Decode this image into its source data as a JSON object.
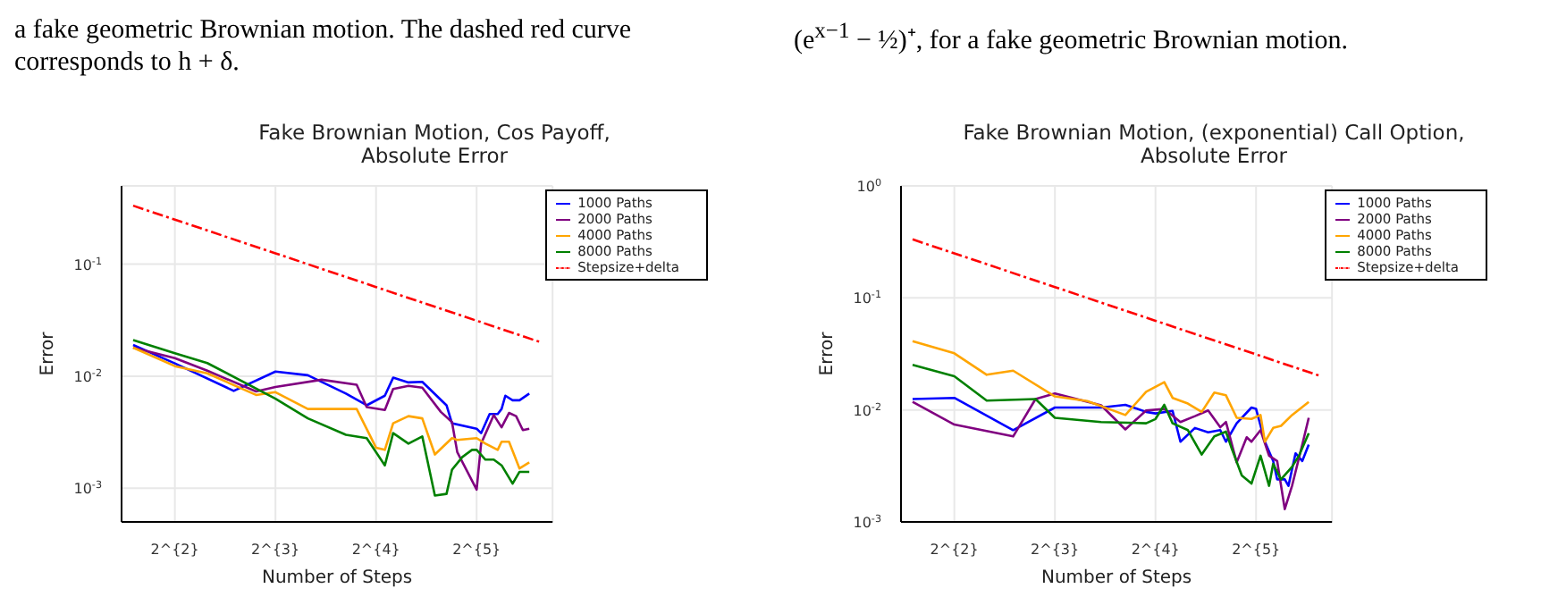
{
  "chart_data": [
    {
      "type": "line",
      "title": "Fake Brownian Motion, Cos Payoff,\nAbsolute Error",
      "xlabel": "Number of Steps",
      "ylabel": "Error",
      "log": "xy",
      "grid": true,
      "legend": "top right",
      "marker": "none",
      "annotations": [
        "a fake geometric Brownian motion. The dashed red curve corresponds to h + δ."
      ],
      "xlim": [
        2.77,
        54
      ],
      "xticks": [
        {
          "value": 4,
          "label": "2^{2}"
        },
        {
          "value": 8,
          "label": "2^{3}"
        },
        {
          "value": 16,
          "label": "2^{4}"
        },
        {
          "value": 32,
          "label": "2^{5}"
        }
      ],
      "ylim": [
        0.0005,
        0.5
      ],
      "yticks": [
        {
          "value": 0.001,
          "label": "10$^{-3}$"
        },
        {
          "value": 0.01,
          "label": "10$^{-2}$"
        },
        {
          "value": 0.1,
          "label": "10$^{-1}$"
        }
      ],
      "series": [
        {
          "name": "1000 Paths",
          "color": "#0000ff",
          "line_style": "solid",
          "x": [
            3,
            4,
            6,
            8,
            10,
            13,
            15,
            17,
            18,
            20,
            22,
            26,
            27,
            32,
            33,
            35,
            37,
            38,
            39,
            41,
            43,
            46
          ],
          "values": [
            0.019,
            0.013,
            0.0074,
            0.011,
            0.0102,
            0.007,
            0.0055,
            0.0067,
            0.0097,
            0.0088,
            0.0089,
            0.0055,
            0.0038,
            0.0034,
            0.0031,
            0.0046,
            0.0046,
            0.0051,
            0.0067,
            0.0061,
            0.0061,
            0.007
          ]
        },
        {
          "name": "2000 Paths",
          "color": "#800080",
          "line_style": "solid",
          "x": [
            3,
            4,
            5,
            7,
            8,
            11,
            14,
            15,
            17,
            18,
            20,
            22,
            25,
            27,
            28,
            32,
            33,
            36,
            38,
            40,
            42,
            44,
            46
          ],
          "values": [
            0.018,
            0.0145,
            0.0112,
            0.0073,
            0.008,
            0.0093,
            0.0084,
            0.0053,
            0.005,
            0.0077,
            0.0082,
            0.0079,
            0.0048,
            0.0039,
            0.0021,
            0.00097,
            0.0025,
            0.0045,
            0.0035,
            0.0047,
            0.0044,
            0.0033,
            0.0034
          ]
        },
        {
          "name": "4000 Paths",
          "color": "#ffa500",
          "line_style": "solid",
          "x": [
            3,
            4,
            5,
            7,
            8,
            10,
            14,
            16,
            17,
            18,
            20,
            22,
            24,
            27,
            28,
            32,
            34,
            37,
            38,
            40,
            43,
            46
          ],
          "values": [
            0.018,
            0.0123,
            0.0106,
            0.0068,
            0.0072,
            0.0051,
            0.0051,
            0.0023,
            0.0022,
            0.0038,
            0.0044,
            0.0042,
            0.002,
            0.0028,
            0.0027,
            0.0028,
            0.0025,
            0.0022,
            0.0026,
            0.0026,
            0.0015,
            0.0017
          ]
        },
        {
          "name": "8000 Paths",
          "color": "#008000",
          "line_style": "solid",
          "x": [
            3,
            4,
            5,
            8,
            10,
            13,
            15,
            17,
            18,
            20,
            22,
            24,
            26,
            27,
            29,
            31,
            32,
            34,
            36,
            38,
            41,
            43,
            46
          ],
          "values": [
            0.021,
            0.016,
            0.0131,
            0.0063,
            0.0042,
            0.003,
            0.0028,
            0.0016,
            0.0031,
            0.0025,
            0.0029,
            0.00086,
            0.00089,
            0.00146,
            0.0019,
            0.0022,
            0.0022,
            0.0018,
            0.0018,
            0.0016,
            0.0011,
            0.0014,
            0.0014
          ]
        },
        {
          "name": "Stepsize+delta",
          "color": "#ff0000",
          "line_style": "dashed",
          "x": [
            3,
            4,
            8,
            16,
            32,
            50
          ],
          "values": [
            0.333,
            0.25,
            0.125,
            0.0625,
            0.0313,
            0.02
          ]
        }
      ]
    },
    {
      "type": "line",
      "title": "Fake Brownian Motion, (exponential) Call Option,\nAbsolute Error",
      "xlabel": "Number of Steps",
      "ylabel": "Error",
      "log": "xy",
      "grid": true,
      "legend": "top right",
      "marker": "none",
      "annotations": [
        "(e$^{x−1}$ − ½)⁺, for a fake geometric Brownian motion."
      ],
      "xlim": [
        2.77,
        54
      ],
      "xticks": [
        {
          "value": 4,
          "label": "2^{2}"
        },
        {
          "value": 8,
          "label": "2^{3}"
        },
        {
          "value": 16,
          "label": "2^{4}"
        },
        {
          "value": 32,
          "label": "2^{5}"
        }
      ],
      "ylim": [
        0.001,
        1
      ],
      "yticks": [
        {
          "value": 0.001,
          "label": "10$^{-3}$"
        },
        {
          "value": 0.01,
          "label": "10$^{-2}$"
        },
        {
          "value": 0.1,
          "label": "10$^{-1}$"
        },
        {
          "value": 1,
          "label": "10$^{0}$"
        }
      ],
      "series": [
        {
          "name": "1000 Paths",
          "color": "#0000ff",
          "line_style": "solid",
          "x": [
            3,
            4,
            6,
            8,
            11,
            13,
            15,
            16,
            18,
            19,
            21,
            23,
            25,
            26,
            28,
            31,
            32,
            34,
            36,
            37,
            39,
            40,
            42,
            44,
            46
          ],
          "values": [
            0.0125,
            0.0128,
            0.0066,
            0.0105,
            0.0105,
            0.0111,
            0.0096,
            0.0093,
            0.0098,
            0.0052,
            0.0069,
            0.0063,
            0.0066,
            0.0052,
            0.0076,
            0.0105,
            0.0102,
            0.0052,
            0.0035,
            0.0024,
            0.0024,
            0.0021,
            0.0041,
            0.0035,
            0.0049
          ]
        },
        {
          "name": "2000 Paths",
          "color": "#800080",
          "line_style": "solid",
          "x": [
            3,
            4,
            6,
            7,
            8,
            11,
            13,
            15,
            17,
            19,
            21,
            23,
            25,
            26,
            28,
            30,
            31,
            33,
            35,
            37,
            39,
            41,
            44,
            46
          ],
          "values": [
            0.0118,
            0.0074,
            0.0058,
            0.0125,
            0.014,
            0.011,
            0.0067,
            0.0099,
            0.0102,
            0.0078,
            0.0088,
            0.0099,
            0.007,
            0.0078,
            0.0034,
            0.0057,
            0.0052,
            0.0066,
            0.0039,
            0.0035,
            0.0013,
            0.0021,
            0.0049,
            0.0085
          ]
        },
        {
          "name": "4000 Paths",
          "color": "#ffa500",
          "line_style": "solid",
          "x": [
            3,
            4,
            5,
            6,
            8,
            10,
            13,
            15,
            17,
            18,
            20,
            22,
            24,
            26,
            28,
            31,
            33,
            34,
            36,
            38,
            41,
            46
          ],
          "values": [
            0.041,
            0.032,
            0.0206,
            0.0224,
            0.0132,
            0.012,
            0.009,
            0.0145,
            0.0177,
            0.0128,
            0.0114,
            0.0096,
            0.0143,
            0.0135,
            0.0085,
            0.0083,
            0.009,
            0.0052,
            0.0069,
            0.0072,
            0.009,
            0.0118
          ]
        },
        {
          "name": "8000 Paths",
          "color": "#008000",
          "line_style": "solid",
          "x": [
            3,
            4,
            5,
            7,
            8,
            11,
            15,
            16,
            17,
            18,
            20,
            22,
            24,
            26,
            27,
            29,
            31,
            33,
            35,
            36,
            38,
            41,
            43,
            46
          ],
          "values": [
            0.0252,
            0.02,
            0.0121,
            0.0125,
            0.0085,
            0.0078,
            0.0076,
            0.0083,
            0.0111,
            0.0076,
            0.0066,
            0.004,
            0.0058,
            0.0064,
            0.0046,
            0.0026,
            0.0022,
            0.0039,
            0.0021,
            0.0033,
            0.0024,
            0.0031,
            0.0039,
            0.0062
          ]
        },
        {
          "name": "Stepsize+delta",
          "color": "#ff0000",
          "line_style": "dashed",
          "x": [
            3,
            4,
            8,
            16,
            32,
            50
          ],
          "values": [
            0.333,
            0.25,
            0.125,
            0.0625,
            0.0313,
            0.02
          ]
        }
      ]
    }
  ]
}
